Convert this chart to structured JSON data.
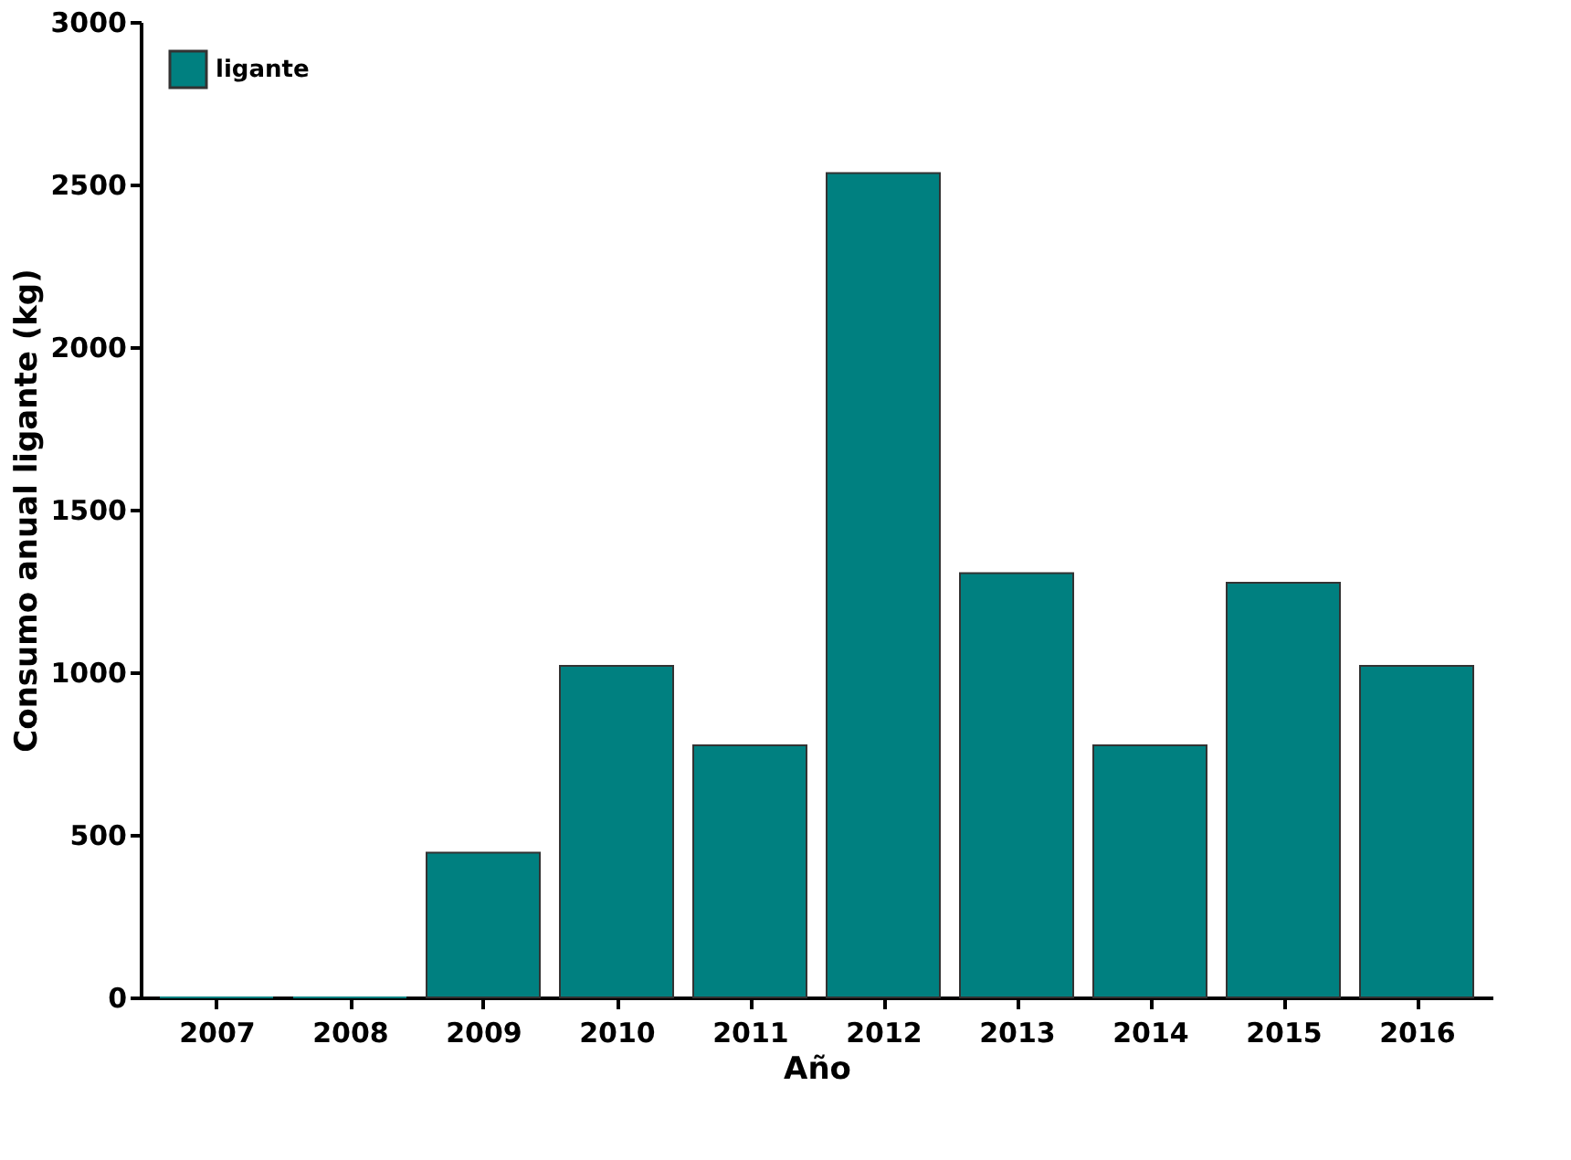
{
  "chart_data": {
    "type": "bar",
    "xlabel": "Año",
    "ylabel": "Consumo anual ligante (kg)",
    "categories": [
      "2007",
      "2008",
      "2009",
      "2010",
      "2011",
      "2012",
      "2013",
      "2014",
      "2015",
      "2016"
    ],
    "series": [
      {
        "name": "ligante",
        "color": "#008080",
        "values": [
          0,
          0,
          445,
          1020,
          775,
          2535,
          1305,
          775,
          1275,
          1020
        ]
      }
    ],
    "ylim": [
      0,
      3000
    ],
    "yticks": [
      0,
      500,
      1000,
      1500,
      2000,
      2500,
      3000
    ],
    "grid": false,
    "legend": "top left"
  }
}
